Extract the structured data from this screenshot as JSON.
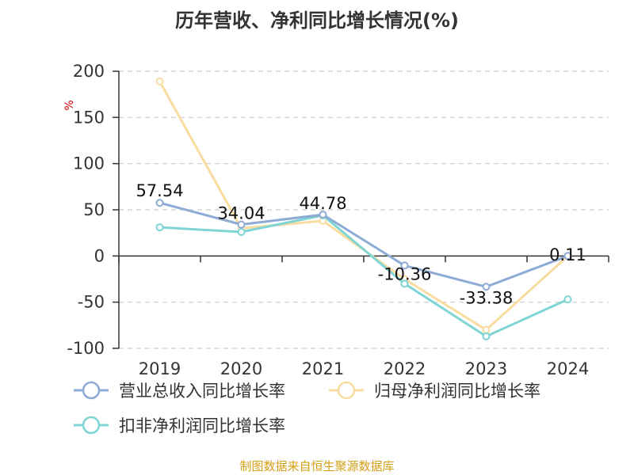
{
  "chart_data": {
    "type": "line",
    "title": "历年营收、净利同比增长情况(%)",
    "ylabel": "%",
    "categories": [
      "2019",
      "2020",
      "2021",
      "2022",
      "2023",
      "2024"
    ],
    "ylim": [
      -100,
      200
    ],
    "yticks": [
      200,
      150,
      100,
      50,
      0,
      -50,
      -100
    ],
    "grid": true,
    "legend_position": "bottom",
    "series": [
      {
        "name": "营业总收入同比增长率",
        "color": "#8eabd6",
        "values": [
          57.54,
          34.04,
          44.78,
          -10.36,
          -33.38,
          0.11
        ],
        "labels": [
          "57.54",
          "34.04",
          "44.78",
          "-10.36",
          "-33.38",
          "0.11"
        ]
      },
      {
        "name": "归母净利润同比增长率",
        "color": "#f9dca0",
        "values": [
          189,
          30,
          38,
          -25,
          -80,
          0
        ]
      },
      {
        "name": "扣非净利润同比增长率",
        "color": "#7fd4d4",
        "values": [
          31,
          26,
          44,
          -30,
          -87,
          -47
        ]
      }
    ]
  },
  "source": "制图数据来自恒生聚源数据库",
  "colors": {
    "title": "#333333",
    "axis_text": "#333333",
    "grid": "#cccccc",
    "axis_line": "#333333",
    "unit": "#cc0000",
    "source": "#d4a017"
  }
}
